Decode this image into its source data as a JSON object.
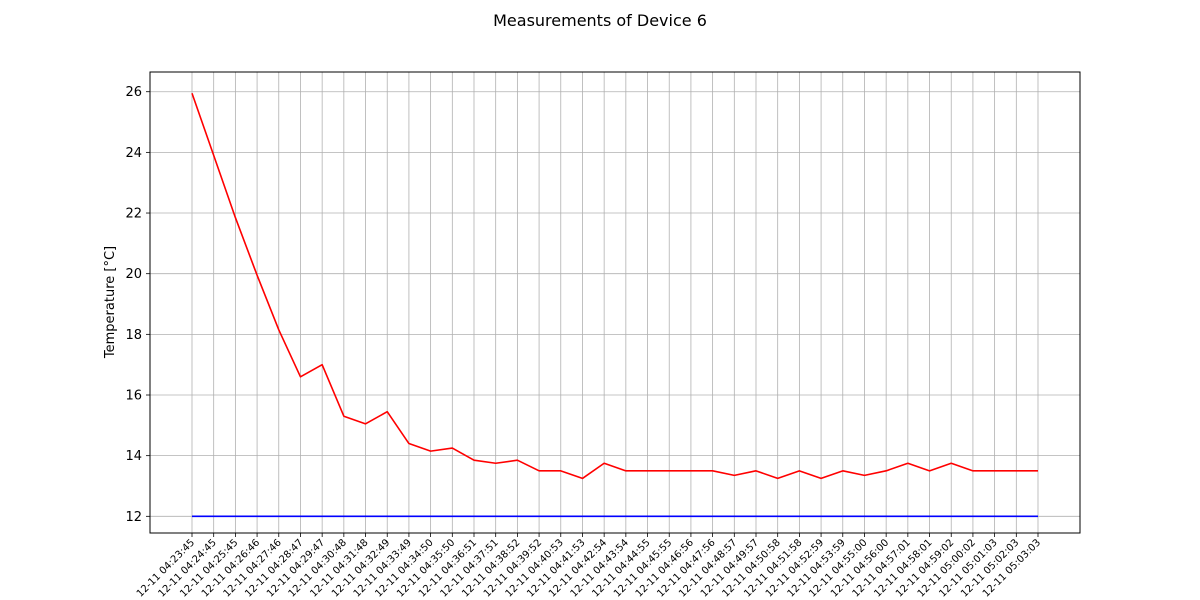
{
  "chart_data": {
    "type": "line",
    "title": "Measurements of Device 6",
    "xlabel": "",
    "ylabel": "Temperature [°C]",
    "ylim": [
      11.45,
      26.65
    ],
    "yticks": [
      12,
      14,
      16,
      18,
      20,
      22,
      24,
      26
    ],
    "grid": true,
    "categories": [
      "12-11 04:23:45",
      "12-11 04:24:45",
      "12-11 04:25:45",
      "12-11 04:26:46",
      "12-11 04:27:46",
      "12-11 04:28:47",
      "12-11 04:29:47",
      "12-11 04:30:48",
      "12-11 04:31:48",
      "12-11 04:32:49",
      "12-11 04:33:49",
      "12-11 04:34:50",
      "12-11 04:35:50",
      "12-11 04:36:51",
      "12-11 04:37:51",
      "12-11 04:38:52",
      "12-11 04:39:52",
      "12-11 04:40:53",
      "12-11 04:41:53",
      "12-11 04:42:54",
      "12-11 04:43:54",
      "12-11 04:44:55",
      "12-11 04:45:55",
      "12-11 04:46:56",
      "12-11 04:47:56",
      "12-11 04:48:57",
      "12-11 04:49:57",
      "12-11 04:50:58",
      "12-11 04:51:58",
      "12-11 04:52:59",
      "12-11 04:53:59",
      "12-11 04:55:00",
      "12-11 04:56:00",
      "12-11 04:57:01",
      "12-11 04:58:01",
      "12-11 04:59:02",
      "12-11 05:00:02",
      "12-11 05:01:03",
      "12-11 05:02:03",
      "12-11 05:03:03"
    ],
    "series": [
      {
        "color": "#ff0000",
        "values": [
          25.95,
          23.9,
          21.85,
          19.95,
          18.15,
          16.6,
          17.0,
          15.3,
          15.05,
          15.45,
          14.4,
          14.15,
          14.25,
          13.85,
          13.75,
          13.85,
          13.5,
          13.5,
          13.25,
          13.75,
          13.5,
          13.5,
          13.5,
          13.5,
          13.5,
          13.35,
          13.5,
          13.25,
          13.5,
          13.25,
          13.5,
          13.35,
          13.5,
          13.75,
          13.5,
          13.75,
          13.5,
          13.5,
          13.5,
          13.5
        ]
      },
      {
        "color": "#0000ff",
        "values": [
          12,
          12,
          12,
          12,
          12,
          12,
          12,
          12,
          12,
          12,
          12,
          12,
          12,
          12,
          12,
          12,
          12,
          12,
          12,
          12,
          12,
          12,
          12,
          12,
          12,
          12,
          12,
          12,
          12,
          12,
          12,
          12,
          12,
          12,
          12,
          12,
          12,
          12,
          12,
          12
        ]
      }
    ]
  }
}
